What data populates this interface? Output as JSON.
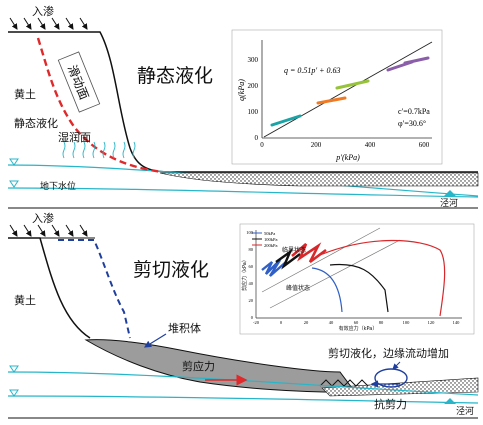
{
  "top": {
    "title": "静态液化",
    "infiltration": "入渗",
    "loess": "黄土",
    "static_liq": "静态液化",
    "slip_surface": "滑动面",
    "wet_surface": "湿润面",
    "groundwater": "地下水位",
    "river": "泾河",
    "inset": {
      "equation": "q = 0.51p′ + 0.63",
      "cohesion": "c′=0.7kPa",
      "friction": "φ′=30.6°",
      "xlabel": "p′(kPa)",
      "ylabel": "q(kPa)",
      "xticks": [
        "0",
        "200",
        "400",
        "600"
      ],
      "yticks": [
        "0",
        "100",
        "200",
        "300"
      ]
    }
  },
  "bottom": {
    "title": "剪切液化",
    "infiltration": "入渗",
    "loess": "黄土",
    "deposit": "堆积体",
    "shear_stress": "剪应力",
    "shear_resist": "抗剪力",
    "edge_flow": "剪切液化，边缘流动增加",
    "river": "泾河",
    "inset": {
      "critical_state": "临界状态",
      "peak_state": "峰值状态",
      "legend": [
        "50kPa",
        "100kPa",
        "200kPa"
      ],
      "xticks": [
        "-20",
        "0",
        "20",
        "40",
        "60",
        "80",
        "100",
        "120",
        "140"
      ],
      "yticks": [
        "0",
        "20",
        "40",
        "60",
        "80",
        "100"
      ],
      "xlabel": "有效应力（kPa）",
      "ylabel": "剪应力（kPa）"
    }
  },
  "colors": {
    "slip_line": "#e0292b",
    "water_line": "#27b6c9",
    "deposit_fill": "#9c9c9c",
    "dash_blue": "#1f3f9f",
    "shear_arrow": "#e0292b",
    "flow_text": "#d6282b"
  }
}
